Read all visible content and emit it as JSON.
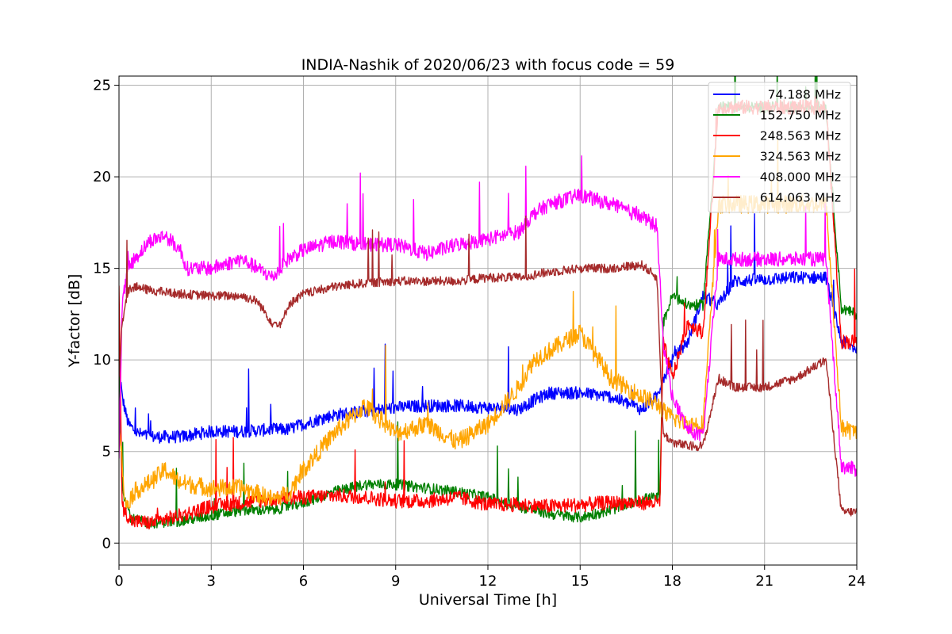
{
  "chart_data": {
    "type": "line",
    "title": "INDIA-Nashik of 2020/06/23 with focus code = 59",
    "xlabel": "Universal Time [h]",
    "ylabel": "Y-factor [dB]",
    "xlim": [
      0,
      24
    ],
    "ylim": [
      -1.2,
      25.5
    ],
    "xticks": [
      "0",
      "3",
      "6",
      "9",
      "12",
      "15",
      "18",
      "21",
      "24"
    ],
    "yticks": [
      "0",
      "5",
      "10",
      "15",
      "20",
      "25"
    ],
    "grid": true,
    "legend_position": "top-right",
    "series": [
      {
        "name": "74.188 MHz",
        "color": "#0000ff",
        "noise": 0.35,
        "x": [
          0,
          0.1,
          0.3,
          0.6,
          1,
          2,
          3,
          4,
          5,
          5.5,
          6,
          7,
          8,
          9,
          10,
          11,
          12,
          13,
          13.5,
          14,
          15,
          16,
          17,
          17.5,
          17.7,
          18,
          18.5,
          19,
          19.5,
          20,
          21,
          22,
          23,
          23.5,
          24
        ],
        "y": [
          10,
          8,
          6.5,
          6,
          5.8,
          5.8,
          6.1,
          6.1,
          6.2,
          6.2,
          6.5,
          7,
          7.2,
          7.4,
          7.5,
          7.5,
          7.4,
          7.3,
          7.8,
          8.2,
          8.2,
          8,
          7.3,
          8,
          9,
          10,
          11,
          13.5,
          13,
          14.3,
          14.4,
          14.5,
          14.5,
          11,
          10.6
        ]
      },
      {
        "name": "152.750 MHz",
        "color": "#008000",
        "noise": 0.3,
        "x": [
          0,
          0.1,
          0.4,
          1,
          2,
          3,
          4,
          5,
          6,
          7,
          8,
          9,
          10,
          11,
          12,
          13,
          14,
          15,
          16,
          17,
          17.6,
          17.7,
          18,
          18.5,
          19,
          19.5,
          20,
          21,
          22,
          23,
          23.5,
          24
        ],
        "y": [
          10,
          3,
          1.3,
          1.1,
          1.2,
          1.5,
          1.8,
          1.8,
          2.2,
          2.8,
          3.2,
          3.2,
          3,
          2.8,
          2.5,
          2,
          1.6,
          1.4,
          1.8,
          2.4,
          2.5,
          12,
          13.5,
          13,
          13,
          23.8,
          23.8,
          23.8,
          23.8,
          23.8,
          12.8,
          12.5
        ]
      },
      {
        "name": "248.563 MHz",
        "color": "#ff0000",
        "noise": 0.4,
        "x": [
          0,
          0.1,
          0.4,
          1,
          2,
          3,
          4,
          5,
          6,
          7,
          8,
          9,
          10,
          11,
          12,
          13,
          14,
          15,
          16,
          17,
          17.6,
          17.7,
          18,
          18.5,
          19,
          19.5,
          20,
          21,
          22,
          23,
          23.5,
          24
        ],
        "y": [
          14,
          2,
          1.2,
          1.1,
          1.5,
          2,
          2.2,
          2.4,
          2.5,
          2.6,
          2.5,
          2.3,
          2.3,
          2.5,
          2.1,
          2.1,
          2,
          2.1,
          2.2,
          2.2,
          2.2,
          11,
          9,
          12,
          11.5,
          23.8,
          23.8,
          23.8,
          23.8,
          23.8,
          11,
          11
        ]
      },
      {
        "name": "324.563 MHz",
        "color": "#ffa500",
        "noise": 0.5,
        "x": [
          0,
          0.2,
          0.5,
          1,
          1.5,
          2,
          3,
          4,
          5,
          5.5,
          6,
          7,
          8,
          9,
          10,
          11,
          12,
          13,
          13.5,
          14,
          15,
          16,
          17,
          17.6,
          17.8,
          18.5,
          19,
          19.5,
          20,
          21,
          22,
          23,
          23.5,
          24
        ],
        "y": [
          7,
          2,
          2.8,
          3.3,
          4,
          3.3,
          3,
          3,
          2.4,
          2.7,
          4,
          6,
          7.5,
          6,
          6.5,
          5.5,
          6.5,
          8.5,
          10,
          10.5,
          11.5,
          9,
          8,
          7.5,
          7,
          6.5,
          6.5,
          18.5,
          18.5,
          18.5,
          18.5,
          18.5,
          6.3,
          6
        ]
      },
      {
        "name": "408.000 MHz",
        "color": "#ff00ff",
        "noise": 0.4,
        "x": [
          0,
          0.1,
          0.3,
          0.5,
          1,
          1.5,
          2,
          2.2,
          3,
          4,
          4.5,
          5,
          5.5,
          6,
          7,
          8,
          9,
          10,
          11,
          12,
          13,
          13.5,
          14,
          15,
          16,
          17,
          17.5,
          17.7,
          18,
          18.5,
          19,
          19.5,
          20,
          21,
          22,
          23,
          23.5,
          24
        ],
        "y": [
          5,
          13,
          15,
          15.5,
          16.5,
          16.8,
          16,
          15,
          15,
          15.5,
          15,
          14.5,
          15.5,
          16,
          16.5,
          16.3,
          16.3,
          15.8,
          16.3,
          16.6,
          17,
          18,
          18.5,
          19,
          18.5,
          17.8,
          17.3,
          11,
          8,
          6.2,
          5.8,
          15.5,
          15.5,
          15.5,
          15.5,
          15.5,
          4.2,
          4
        ]
      },
      {
        "name": "614.063 MHz",
        "color": "#a52a2a",
        "noise": 0.25,
        "x": [
          0,
          0.1,
          0.3,
          0.5,
          1,
          2,
          3,
          4,
          4.5,
          5,
          5.3,
          5.5,
          6,
          7,
          8,
          9,
          10,
          11,
          12,
          13,
          14,
          15,
          16,
          17,
          17.5,
          17.7,
          18,
          18.5,
          19,
          19.5,
          20,
          21,
          22,
          23,
          23.5,
          24
        ],
        "y": [
          9,
          12,
          13.8,
          14,
          13.8,
          13.6,
          13.5,
          13.5,
          13.2,
          12,
          12,
          13,
          13.6,
          14,
          14.2,
          14.3,
          14.3,
          14.3,
          14.5,
          14.5,
          14.8,
          15,
          15,
          15.2,
          14.5,
          6,
          5.5,
          5.3,
          5.3,
          9,
          8.5,
          8.5,
          9,
          10,
          1.7,
          1.7
        ]
      }
    ]
  }
}
